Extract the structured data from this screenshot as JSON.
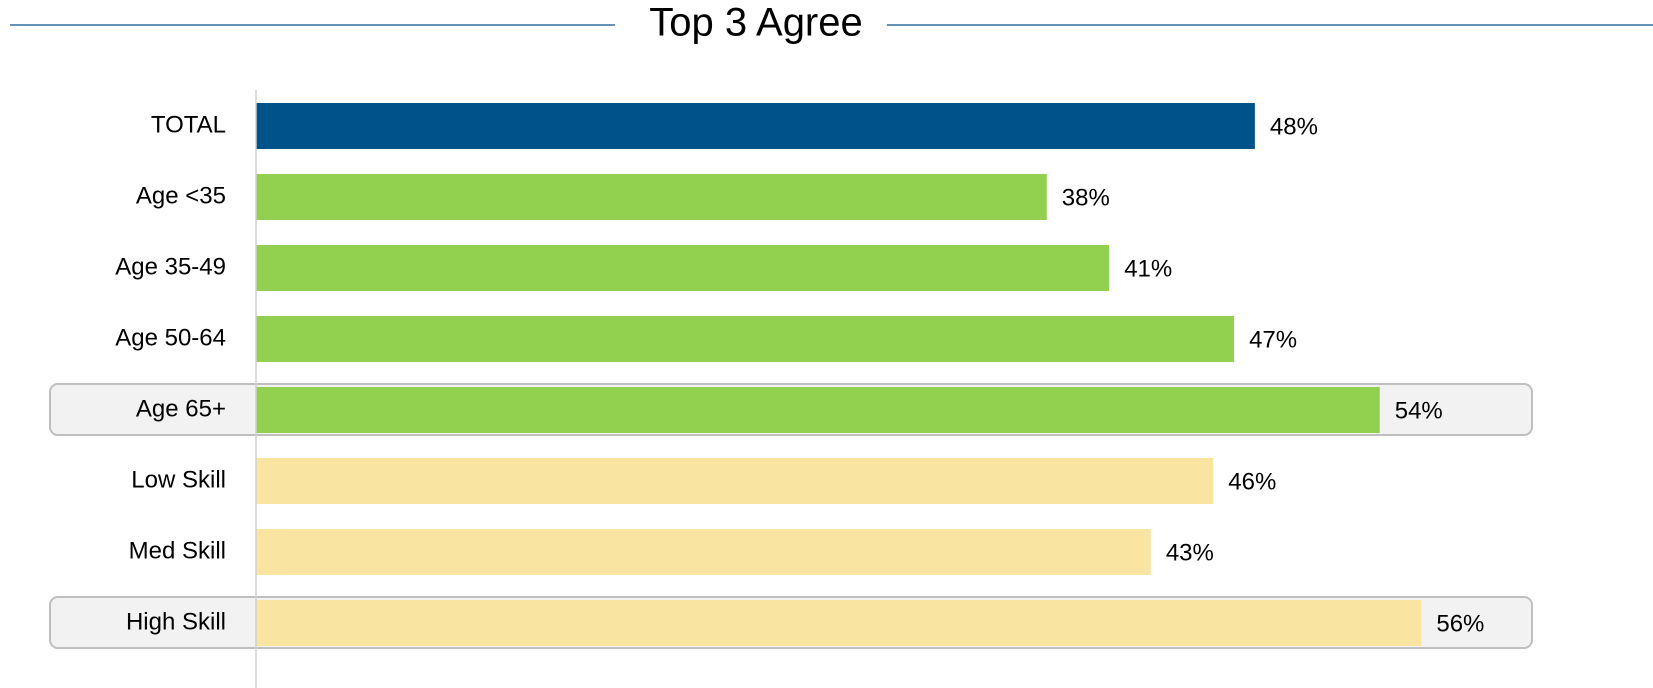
{
  "chart_data": {
    "type": "bar",
    "orientation": "horizontal",
    "title": "Top 3 Agree",
    "categories": [
      "TOTAL",
      "Age <35",
      "Age 35-49",
      "Age 50-64",
      "Age 65+",
      "Low Skill",
      "Med Skill",
      "High Skill"
    ],
    "values": [
      48,
      38,
      41,
      47,
      54,
      46,
      43,
      56
    ],
    "value_labels": [
      "48%",
      "38%",
      "41%",
      "47%",
      "54%",
      "46%",
      "43%",
      "56%"
    ],
    "colors": [
      "#00538a",
      "#92d050",
      "#92d050",
      "#92d050",
      "#92d050",
      "#f9e5a1",
      "#f9e5a1",
      "#f9e5a1"
    ],
    "highlight": [
      false,
      false,
      false,
      false,
      true,
      false,
      false,
      true
    ]
  }
}
